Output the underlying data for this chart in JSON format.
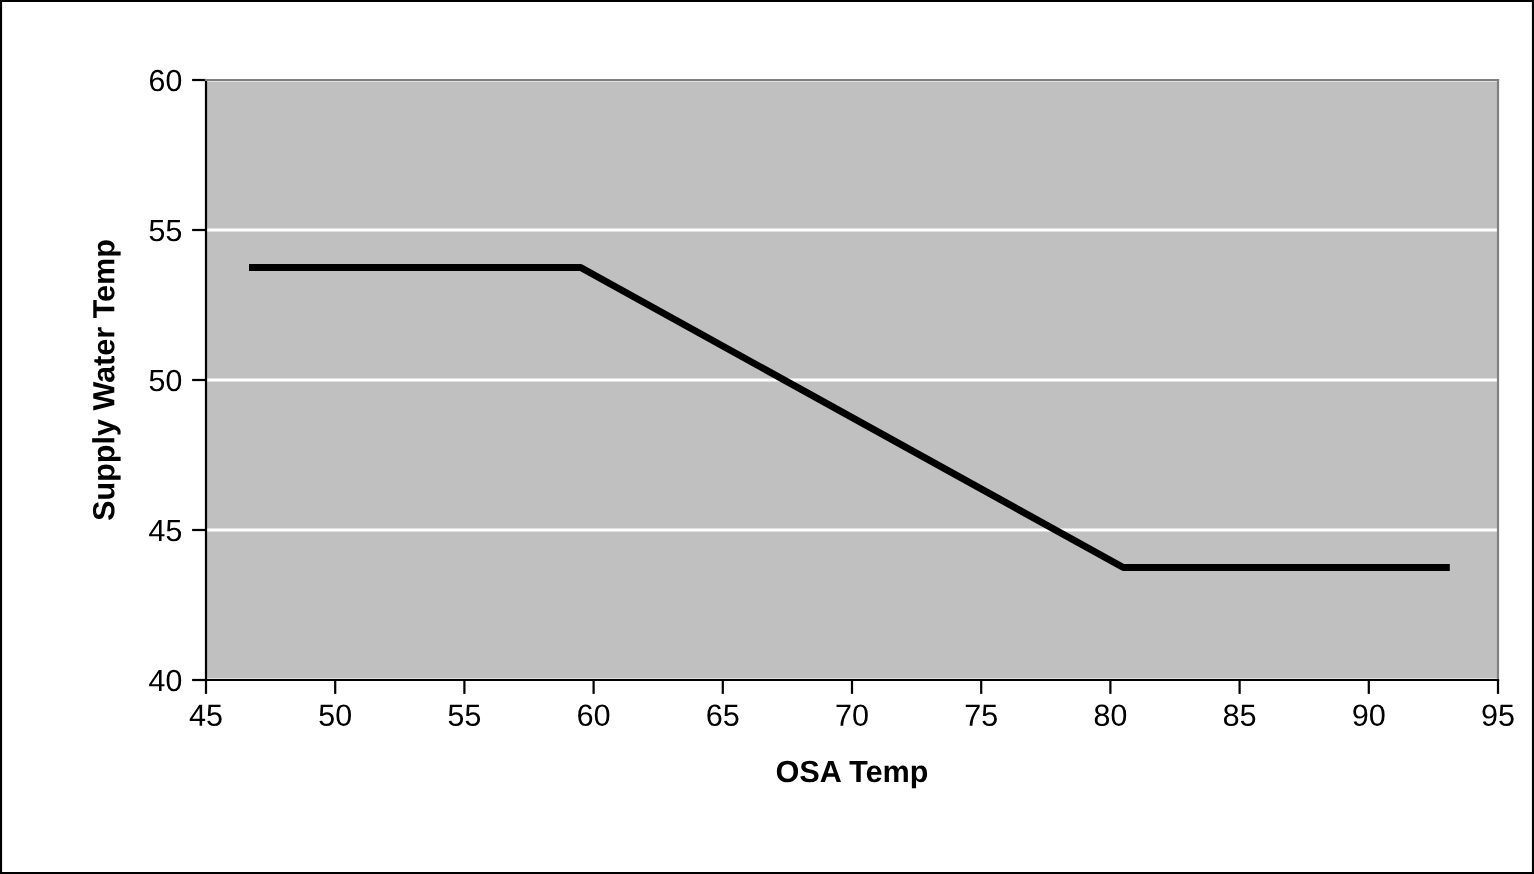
{
  "chart_data": {
    "type": "line",
    "xlabel": "OSA Temp",
    "ylabel": "Supply Water Temp",
    "x": [
      46.8,
      59.5,
      80.5,
      93
    ],
    "series": [
      {
        "color": "#000000",
        "values": [
          53.75,
          53.75,
          43.75,
          43.75
        ]
      }
    ],
    "xlim": [
      45,
      95
    ],
    "xticks": [
      45,
      50,
      55,
      60,
      65,
      70,
      75,
      80,
      85,
      90,
      95
    ],
    "ylim": [
      40,
      60
    ],
    "yticks": [
      40,
      45,
      50,
      55,
      60
    ],
    "grid": "y",
    "legend": false,
    "marker": "none",
    "line_style": "solid"
  }
}
